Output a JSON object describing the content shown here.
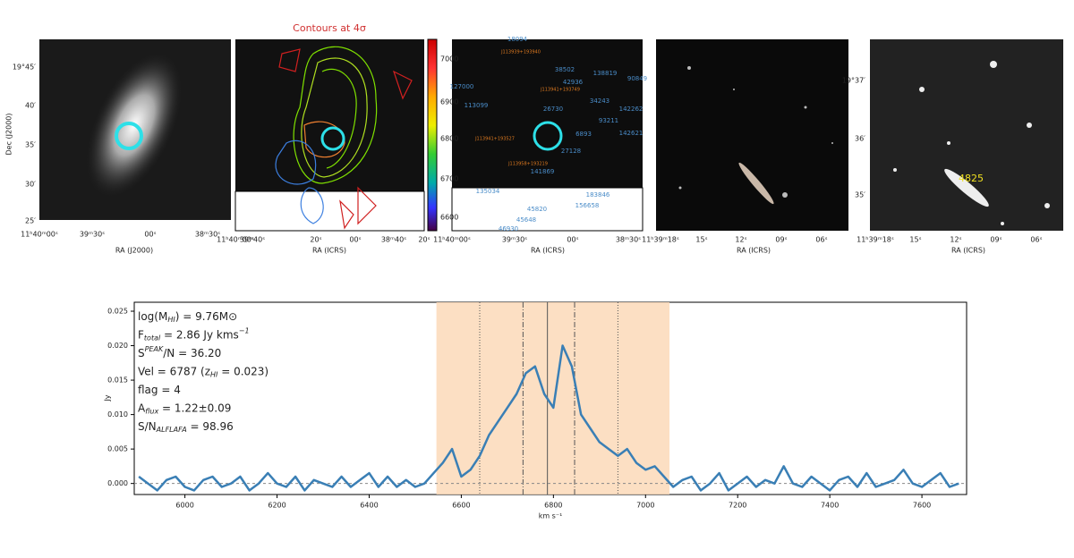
{
  "panels": [
    {
      "xlabel": "RA (J2000)",
      "ylabel": "Dec (J2000)",
      "xticks": [
        "11ʰ40ᵐ00ˢ",
        "39ᵐ30ˢ",
        "00ˢ",
        "38ᵐ30ˢ"
      ],
      "yticks": [
        "19°45′",
        "40′",
        "35′",
        "30′",
        "25′"
      ]
    },
    {
      "title": "Contours at 4σ",
      "xlabel": "RA (ICRS)",
      "xticks": [
        "11ʰ40ᵐ00ˢ",
        "39ᵐ40ˢ",
        "20ˢ",
        "00ˢ",
        "38ᵐ40ˢ",
        "20ˢ"
      ],
      "colorbar": {
        "ticks": [
          7000,
          6900,
          6800,
          6700,
          6600
        ]
      }
    },
    {
      "xlabel": "RA (ICRS)",
      "xticks": [
        "11ʰ40ᵐ00ˢ",
        "39ᵐ30ˢ",
        "00ˢ",
        "38ᵐ30ˢ"
      ],
      "labels": [
        {
          "text": "18094",
          "color": "#4a8cc8"
        },
        {
          "text": "J113939+193940",
          "color": "#e07b20"
        },
        {
          "text": "38502",
          "color": "#4a8cc8"
        },
        {
          "text": "138819",
          "color": "#4a8cc8"
        },
        {
          "text": "127000",
          "color": "#4a8cc8"
        },
        {
          "text": "42936",
          "color": "#4a8cc8"
        },
        {
          "text": "J113941+193749",
          "color": "#e07b20"
        },
        {
          "text": "113099",
          "color": "#4a8cc8"
        },
        {
          "text": "26730",
          "color": "#4a8cc8"
        },
        {
          "text": "34243",
          "color": "#4a8cc8"
        },
        {
          "text": "142262",
          "color": "#4a8cc8"
        },
        {
          "text": "93211",
          "color": "#4a8cc8"
        },
        {
          "text": "J113941+193527",
          "color": "#e07b20"
        },
        {
          "text": "6893",
          "color": "#4a8cc8"
        },
        {
          "text": "142621",
          "color": "#4a8cc8"
        },
        {
          "text": "27128",
          "color": "#4a8cc8"
        },
        {
          "text": "J113958+193219",
          "color": "#e07b20"
        },
        {
          "text": "141869",
          "color": "#4a8cc8"
        },
        {
          "text": "183846",
          "color": "#4a8cc8"
        },
        {
          "text": "135034",
          "color": "#4a8cc8"
        },
        {
          "text": "45820",
          "color": "#4a8cc8"
        },
        {
          "text": "156658",
          "color": "#4a8cc8"
        },
        {
          "text": "45648",
          "color": "#4a8cc8"
        },
        {
          "text": "46930",
          "color": "#4a8cc8"
        },
        {
          "text": "90849",
          "color": "#4a8cc8"
        }
      ]
    },
    {
      "xlabel": "RA (ICRS)",
      "xticks": [
        "11ʰ39ᵐ18ˢ",
        "15ˢ",
        "12ˢ",
        "09ˢ",
        "06ˢ"
      ]
    },
    {
      "xlabel": "RA (ICRS)",
      "xticks": [
        "11ʰ39ᵐ18ˢ",
        "15ˢ",
        "12ˢ",
        "09ˢ",
        "06ˢ"
      ],
      "yticks": [
        "19°37′",
        "36′",
        "35′"
      ],
      "marker": "4825"
    }
  ],
  "chart_data": {
    "type": "line",
    "xlabel": "km s⁻¹",
    "ylabel": "Jy",
    "annotations": [
      [
        {
          "t": "log(M"
        },
        {
          "t": "HI",
          "s": "sub"
        },
        {
          "t": ") = 9.76M⊙"
        }
      ],
      [
        {
          "t": "F"
        },
        {
          "t": "total",
          "s": "sub"
        },
        {
          "t": " = 2.86 Jy kms"
        },
        {
          "t": "−1",
          "s": "sup"
        }
      ],
      [
        {
          "t": "S"
        },
        {
          "t": "PEAK",
          "s": "sup"
        },
        {
          "t": "/N = 36.20"
        }
      ],
      [
        {
          "t": "Vel = 6787 (z"
        },
        {
          "t": "HI",
          "s": "sub"
        },
        {
          "t": " = 0.023)"
        }
      ],
      [
        {
          "t": "flag = 4"
        }
      ],
      [
        {
          "t": "A"
        },
        {
          "t": "flux",
          "s": "sub"
        },
        {
          "t": " = 1.22±0.09"
        }
      ],
      [
        {
          "t": "S/N"
        },
        {
          "t": "ALFLAFA",
          "s": "sub"
        },
        {
          "t": " = 98.96"
        }
      ]
    ],
    "xlim": [
      5890,
      7697
    ],
    "ylim": [
      -0.0016,
      0.0263
    ],
    "xticks": [
      6000,
      6200,
      6400,
      6600,
      6800,
      7000,
      7200,
      7400,
      7600
    ],
    "yticks": [
      {
        "value": 0,
        "label": "0.000"
      },
      {
        "value": 0.005,
        "label": "0.005"
      },
      {
        "value": 0.01,
        "label": "0.010"
      },
      {
        "value": 0.015,
        "label": "0.015"
      },
      {
        "value": 0.02,
        "label": "0.020"
      },
      {
        "value": 0.025,
        "label": "0.025"
      }
    ],
    "span": [
      6546,
      7052
    ],
    "span_color": "#fbd9b8",
    "vlines": [
      {
        "value": 6787,
        "style": "solid"
      },
      {
        "value": 6734,
        "style": "dashdot"
      },
      {
        "value": 6846,
        "style": "dashdot"
      },
      {
        "value": 6640,
        "style": "dotted"
      },
      {
        "value": 6940,
        "style": "dotted"
      }
    ],
    "series": [
      {
        "color": "#3a7fb5",
        "x": [
          5900,
          5920,
          5940,
          5960,
          5980,
          6000,
          6020,
          6040,
          6060,
          6080,
          6100,
          6120,
          6140,
          6160,
          6180,
          6200,
          6220,
          6240,
          6260,
          6280,
          6300,
          6320,
          6340,
          6360,
          6380,
          6400,
          6420,
          6440,
          6460,
          6480,
          6500,
          6520,
          6540,
          6560,
          6580,
          6600,
          6620,
          6640,
          6660,
          6680,
          6700,
          6720,
          6740,
          6760,
          6780,
          6800,
          6820,
          6840,
          6860,
          6880,
          6900,
          6920,
          6940,
          6960,
          6980,
          7000,
          7020,
          7040,
          7060,
          7080,
          7100,
          7120,
          7140,
          7160,
          7180,
          7200,
          7220,
          7240,
          7260,
          7280,
          7300,
          7320,
          7340,
          7360,
          7380,
          7400,
          7420,
          7440,
          7460,
          7480,
          7500,
          7520,
          7540,
          7560,
          7580,
          7600,
          7620,
          7640,
          7660,
          7680
        ],
        "values": [
          0.001,
          0,
          -0.001,
          0.0005,
          0.001,
          -0.0005,
          -0.001,
          0.0005,
          0.001,
          -0.0005,
          0,
          0.001,
          -0.001,
          0,
          0.0015,
          0,
          -0.0005,
          0.001,
          -0.001,
          0.0005,
          0,
          -0.0005,
          0.001,
          -0.0005,
          0.0005,
          0.0015,
          -0.0005,
          0.001,
          -0.0005,
          0.0005,
          -0.0005,
          0,
          0.0015,
          0.003,
          0.005,
          0.001,
          0.002,
          0.004,
          0.007,
          0.009,
          0.011,
          0.013,
          0.016,
          0.017,
          0.013,
          0.011,
          0.02,
          0.017,
          0.01,
          0.008,
          0.006,
          0.005,
          0.004,
          0.005,
          0.003,
          0.002,
          0.0025,
          0.001,
          -0.0005,
          0.0005,
          0.001,
          -0.001,
          0,
          0.0015,
          -0.001,
          0,
          0.001,
          -0.0005,
          0.0005,
          0,
          0.0025,
          0,
          -0.0005,
          0.001,
          0,
          -0.001,
          0.0005,
          0.001,
          -0.0005,
          0.0015,
          -0.0005,
          0,
          0.0005,
          0.002,
          0,
          -0.0005,
          0.0005,
          0.0015,
          -0.0005,
          0
        ]
      }
    ]
  }
}
